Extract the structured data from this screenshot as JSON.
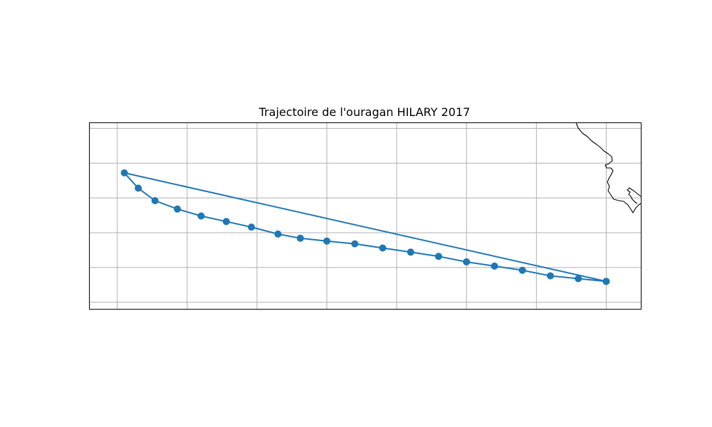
{
  "title": "Trajectoire de l'ouragan HILARY 2017",
  "colors": {
    "track": "#1f77b4",
    "grid": "#b0b0b0",
    "coastline": "#000000",
    "frame": "#000000"
  },
  "map": {
    "projection": "PlateCarree",
    "gridlines": true,
    "lon_range": [
      -129.5,
      -90.0
    ],
    "lat_range": [
      11.0,
      24.4
    ],
    "lon_gridlines": [
      -127.5,
      -122.5,
      -117.5,
      -112.5,
      -107.5,
      -102.5,
      -97.5,
      -92.5
    ],
    "lat_gridlines": [
      11.5,
      14.0,
      16.5,
      19.0,
      21.5,
      24.0
    ],
    "coastline_shown": true
  },
  "chart_data": {
    "type": "scatter",
    "title": "Trajectoire de l'ouragan HILARY 2017",
    "xlabel": "",
    "ylabel": "",
    "xlim": [
      -129.5,
      -90.0
    ],
    "ylim": [
      11.0,
      24.4
    ],
    "grid": true,
    "connected_path": true,
    "legend": "none",
    "series": [
      {
        "points_lon": [
          -92.5,
          -94.5,
          -96.5,
          -98.5,
          -100.5,
          -102.5,
          -104.5,
          -106.5,
          -108.5,
          -110.5,
          -112.5,
          -114.4,
          -116.0,
          -117.9,
          -119.7,
          -121.5,
          -123.2,
          -124.8,
          -126.0,
          -127.0,
          -92.5
        ],
        "points_lat": [
          13.0,
          13.2,
          13.4,
          13.8,
          14.1,
          14.4,
          14.8,
          15.1,
          15.4,
          15.7,
          15.9,
          16.1,
          16.4,
          16.9,
          17.3,
          17.7,
          18.2,
          18.8,
          19.7,
          20.8,
          13.0
        ]
      }
    ]
  }
}
